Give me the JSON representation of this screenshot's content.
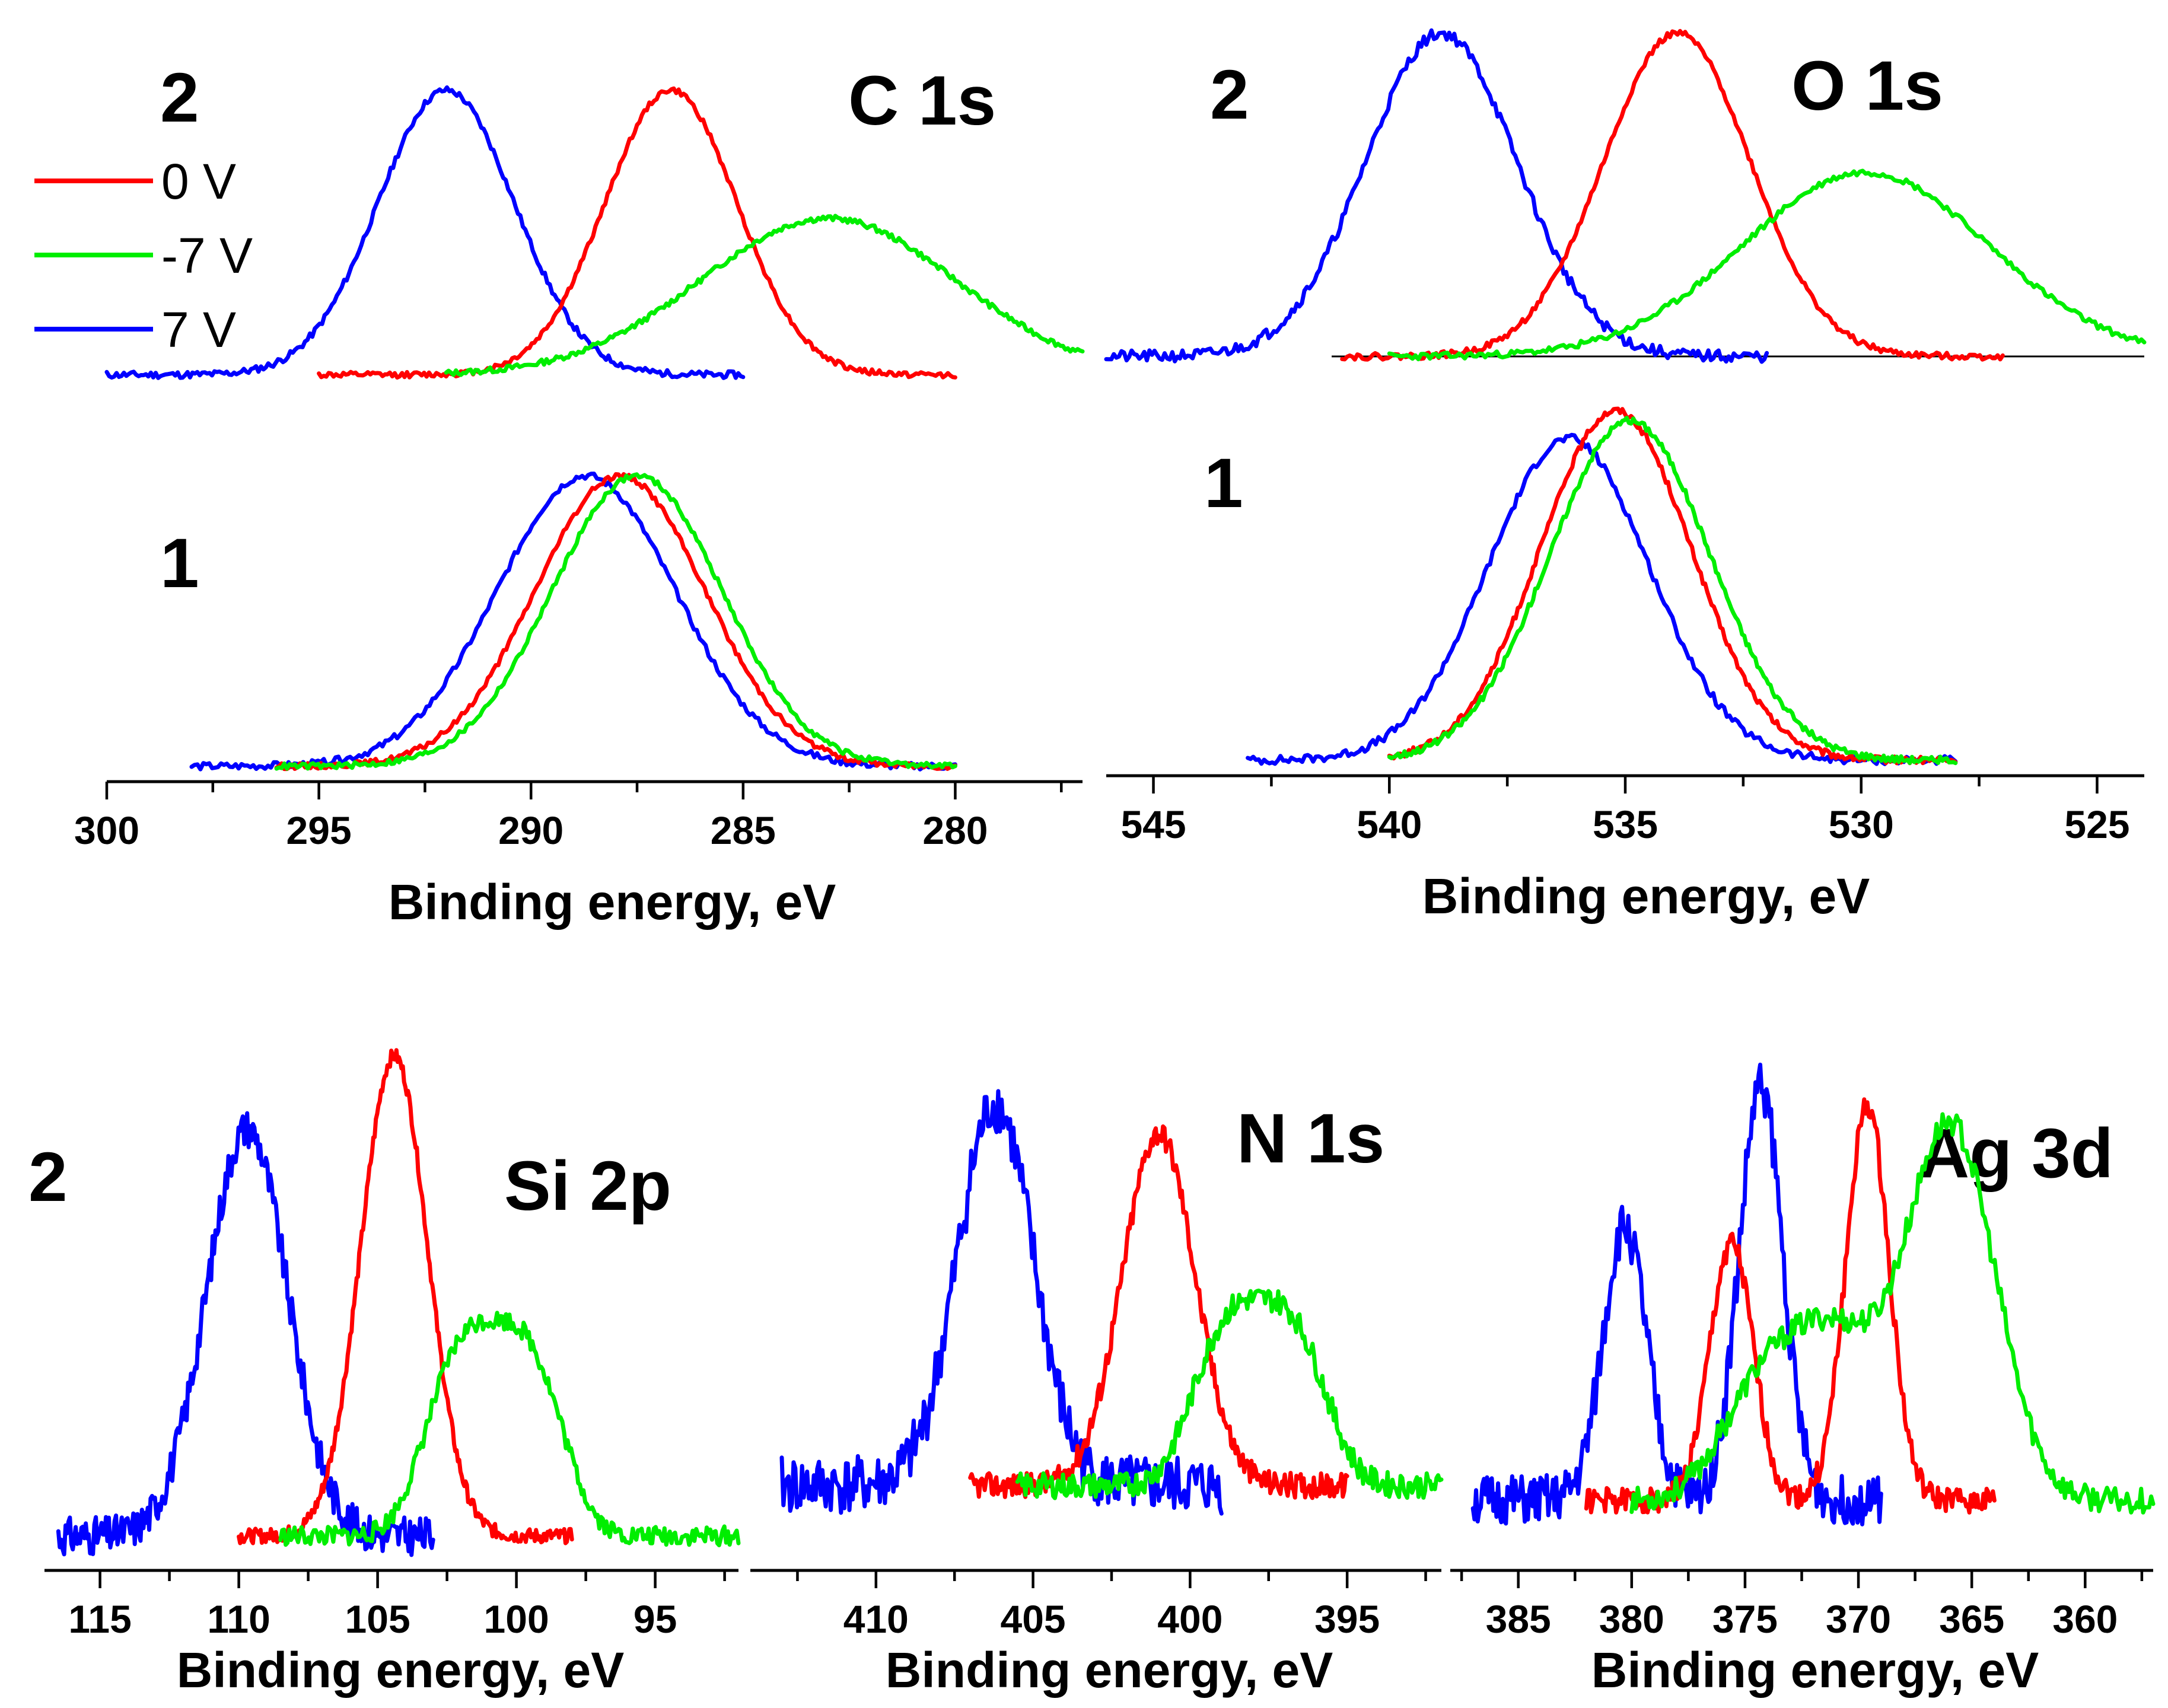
{
  "colors": {
    "0 V": "#ff0000",
    "-7 V": "#00ee00",
    "7 V": "#0000ff"
  },
  "legend": {
    "title": "2",
    "entries": [
      "0 V",
      "-7 V",
      "7 V"
    ]
  },
  "chart_data": [
    {
      "id": "c1s",
      "type": "line",
      "title": "C 1s",
      "xlabel": "Binding energy, eV",
      "xlim": [
        300,
        277
      ],
      "ticks": [
        300,
        295,
        290,
        285,
        280
      ],
      "index_labels": [
        "2",
        "1"
      ],
      "groups": [
        {
          "label": "2",
          "series": [
            {
              "name": "7 V",
              "x_range": [
                300,
                285
              ],
              "center": 292.0,
              "width": 1.6,
              "amp": 1.0,
              "noise": 0.012,
              "seed": 11
            },
            {
              "name": "0 V",
              "x_range": [
                295,
                280
              ],
              "center": 286.7,
              "width": 1.55,
              "amp": 1.0,
              "noise": 0.01,
              "seed": 12
            },
            {
              "name": "-7 V",
              "x_range": [
                292,
                277
              ],
              "center": 283.0,
              "width": 3.0,
              "amp": 0.55,
              "noise": 0.01,
              "seed": 13
            }
          ]
        },
        {
          "label": "1",
          "series": [
            {
              "name": "7 V",
              "x_range": [
                298,
                280
              ],
              "center": 288.7,
              "width": 2.1,
              "amp": 1.0,
              "noise": 0.012,
              "seed": 14
            },
            {
              "name": "0 V",
              "x_range": [
                296,
                280
              ],
              "center": 287.9,
              "width": 2.0,
              "amp": 1.0,
              "noise": 0.01,
              "seed": 15
            },
            {
              "name": "-7 V",
              "x_range": [
                296,
                280
              ],
              "center": 287.5,
              "width": 2.0,
              "amp": 1.0,
              "noise": 0.01,
              "seed": 16
            }
          ]
        }
      ]
    },
    {
      "id": "o1s",
      "type": "line",
      "title": "O 1s",
      "xlabel": "Binding energy, eV",
      "xlim": [
        546,
        524
      ],
      "ticks": [
        545,
        540,
        535,
        530,
        525
      ],
      "index_labels": [
        "2",
        "1"
      ],
      "groups": [
        {
          "label": "2",
          "series": [
            {
              "name": "7 V",
              "x_range": [
                546,
                532
              ],
              "center": 538.9,
              "width": 1.6,
              "amp": 1.0,
              "noise": 0.018,
              "seed": 21
            },
            {
              "name": "0 V",
              "x_range": [
                541,
                527
              ],
              "center": 533.9,
              "width": 1.55,
              "amp": 1.0,
              "noise": 0.01,
              "seed": 22
            },
            {
              "name": "-7 V",
              "x_range": [
                540,
                524
              ],
              "center": 529.9,
              "width": 2.6,
              "amp": 0.57,
              "noise": 0.01,
              "seed": 23
            }
          ]
        },
        {
          "label": "1",
          "series": [
            {
              "name": "7 V",
              "x_range": [
                543,
                528
              ],
              "center": 536.2,
              "width": 1.7,
              "amp": 0.92,
              "noise": 0.012,
              "seed": 24
            },
            {
              "name": "0 V",
              "x_range": [
                540,
                528
              ],
              "center": 535.2,
              "width": 1.6,
              "amp": 1.0,
              "noise": 0.01,
              "seed": 25
            },
            {
              "name": "-7 V",
              "x_range": [
                540,
                528
              ],
              "center": 534.9,
              "width": 1.7,
              "amp": 0.97,
              "noise": 0.01,
              "seed": 26
            }
          ]
        }
      ]
    },
    {
      "id": "si2p",
      "type": "line",
      "title": "Si 2p",
      "xlabel": "Binding energy, eV",
      "xlim": [
        117,
        92
      ],
      "ticks": [
        115,
        110,
        105,
        100,
        95
      ],
      "index_labels": [
        "2"
      ],
      "groups": [
        {
          "label": "2",
          "series": [
            {
              "name": "7 V",
              "x_range": [
                116.5,
                103
              ],
              "center": 109.7,
              "width": 1.45,
              "amp": 0.85,
              "noise": 0.04,
              "seed": 31
            },
            {
              "name": "0 V",
              "x_range": [
                110,
                98
              ],
              "center": 104.4,
              "width": 1.2,
              "amp": 1.0,
              "noise": 0.015,
              "seed": 32
            },
            {
              "name": "-7 V",
              "x_range": [
                108.5,
                92
              ],
              "center": 100.8,
              "width": 2.2,
              "amp": 0.45,
              "noise": 0.02,
              "seed": 33,
              "flat": true
            }
          ]
        }
      ]
    },
    {
      "id": "n1s",
      "type": "line",
      "title": "N 1s",
      "xlabel": "Binding energy, eV",
      "xlim": [
        414,
        392
      ],
      "ticks": [
        410,
        405,
        400,
        395
      ],
      "index_labels": [],
      "groups": [
        {
          "label": "2",
          "series": [
            {
              "name": "7 V",
              "x_range": [
                413,
                399
              ],
              "center": 406.2,
              "width": 1.2,
              "amp": 0.92,
              "noise": 0.07,
              "seed": 41
            },
            {
              "name": "0 V",
              "x_range": [
                407,
                395
              ],
              "center": 401.0,
              "width": 1.15,
              "amp": 0.85,
              "noise": 0.03,
              "seed": 42
            },
            {
              "name": "-7 V",
              "x_range": [
                405.5,
                392
              ],
              "center": 397.8,
              "width": 1.9,
              "amp": 0.45,
              "noise": 0.03,
              "seed": 43,
              "flat": true
            }
          ]
        }
      ]
    },
    {
      "id": "ag3d",
      "type": "line",
      "title": "Ag 3d",
      "xlabel": "Binding energy, eV",
      "xlim": [
        388,
        357
      ],
      "ticks": [
        385,
        380,
        375,
        370,
        365,
        360
      ],
      "index_labels": [],
      "groups": [
        {
          "label": "2",
          "series": [
            {
              "name": "7 V",
              "peaks": [
                [
                  380.3,
                  0.66
                ],
                [
                  374.3,
                  1.0
                ]
              ],
              "x_range": [
                387,
                369
              ],
              "width": 0.95,
              "noise": 0.06,
              "seed": 51
            },
            {
              "name": "0 V",
              "peaks": [
                [
                  375.6,
                  0.62
                ],
                [
                  369.6,
                  0.95
                ]
              ],
              "x_range": [
                382,
                364
              ],
              "width": 0.95,
              "noise": 0.03,
              "seed": 52
            },
            {
              "name": "-7 V",
              "peaks": [
                [
                  374.2,
                  0.27
                ],
                [
                  371.0,
                  0.35
                ],
                [
                  366.8,
                  0.48
                ],
                [
                  365.2,
                  0.52
                ]
              ],
              "x_range": [
                380,
                357
              ],
              "width": 1.8,
              "noise": 0.03,
              "seed": 53
            }
          ]
        }
      ]
    }
  ]
}
